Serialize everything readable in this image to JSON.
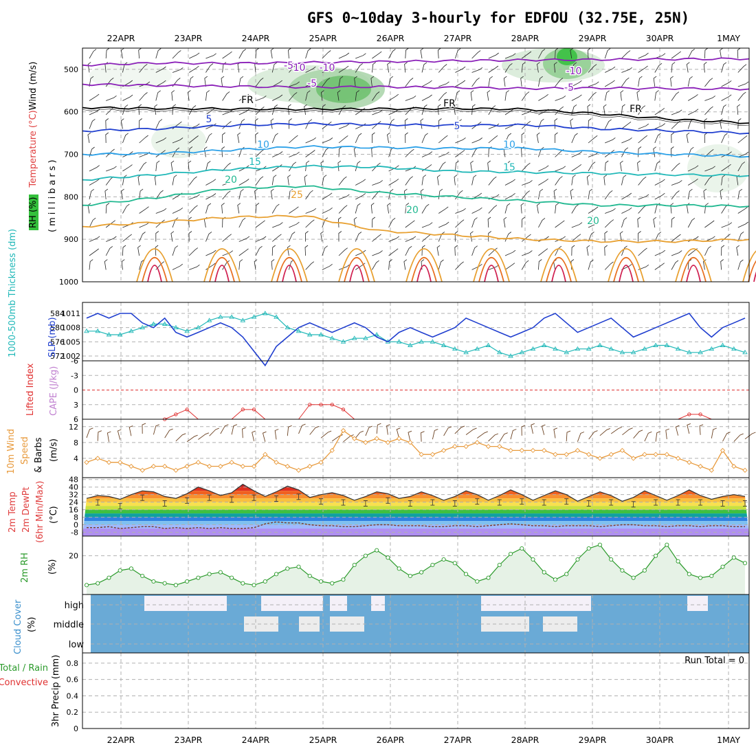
{
  "title": "GFS 0~10day 3-hourly for EDFOU (32.75E, 25N)",
  "dates": [
    "22APR",
    "23APR",
    "24APR",
    "25APR",
    "26APR",
    "27APR",
    "28APR",
    "29APR",
    "30APR",
    "1MAY"
  ],
  "colors": {
    "temp_cold": "#8a1fb8",
    "temp_freeze": "#000000",
    "temp_5": "#1f3ecf",
    "temp_10": "#2aa0e8",
    "temp_15": "#20b8b8",
    "temp_20": "#20b890",
    "temp_25": "#e8a030",
    "temp_30": "#e87020",
    "temp_35": "#d02050",
    "rh_green": "#34c03c",
    "slp": "#1f3ecf",
    "thickness": "#20b8b8",
    "lifted": "#e03030",
    "wind10": "#e89a3c",
    "rh2m": "#2a9a2a",
    "cloud": "#6aaad6",
    "cloud_clear": "#f4f0f8"
  },
  "chart_data": [
    {
      "id": "upper_air",
      "type": "contour",
      "y_axis_label_parts": [
        "RH (%)",
        "Temperature (°C)",
        "Wind (m/s)"
      ],
      "y_axis_title": "(millibars)",
      "y_ticks": [
        "500",
        "600",
        "700",
        "800",
        "900",
        "1000"
      ],
      "ylim": [
        450,
        1000
      ],
      "contours": [
        {
          "label": "-10",
          "value": -10,
          "levels": [
            490,
            485,
            486,
            484,
            482,
            480,
            478,
            477,
            476,
            475
          ]
        },
        {
          "label": "-5",
          "value": -5,
          "levels": [
            535,
            538,
            540,
            542,
            541,
            543,
            545,
            544,
            545,
            546
          ]
        },
        {
          "label": "FR",
          "value": 0,
          "levels": [
            590,
            592,
            593,
            594,
            593,
            592,
            594,
            605,
            618,
            626
          ]
        },
        {
          "label": "5",
          "value": 5,
          "levels": [
            645,
            640,
            632,
            628,
            630,
            632,
            631,
            640,
            645,
            650
          ]
        },
        {
          "label": "10",
          "value": 10,
          "levels": [
            700,
            698,
            690,
            682,
            684,
            686,
            686,
            695,
            700,
            705
          ]
        },
        {
          "label": "15",
          "value": 15,
          "levels": [
            760,
            748,
            735,
            728,
            730,
            740,
            742,
            745,
            748,
            750
          ]
        },
        {
          "label": "20",
          "value": 20,
          "levels": [
            820,
            802,
            780,
            775,
            790,
            800,
            810,
            820,
            820,
            822
          ]
        },
        {
          "label": "25",
          "value": 25,
          "levels": [
            870,
            860,
            848,
            845,
            880,
            890,
            900,
            905,
            905,
            900
          ]
        }
      ],
      "contour_labels": [
        "-10",
        "-5",
        "FR",
        "5",
        "10",
        "15",
        "20",
        "25",
        "-10",
        "-5",
        "FR",
        "5",
        "10",
        "15",
        "20",
        "FR",
        "-10",
        "-5",
        "20"
      ]
    },
    {
      "id": "slp_thickness",
      "type": "line",
      "y_axis_label": "1000-500mb Thickness (dm)",
      "y2_axis_label": "SLP (mb)",
      "left_ticks": [
        "584",
        "580",
        "576",
        "572"
      ],
      "right_ticks": [
        "1011",
        "1008",
        "1005",
        "1002"
      ],
      "series": [
        {
          "id": "slp",
          "values": [
            1010,
            1011,
            1010,
            1011,
            1011,
            1009,
            1008,
            1010,
            1007,
            1006,
            1007,
            1008,
            1009,
            1008,
            1006,
            1003,
            1000,
            1004,
            1006,
            1008,
            1009,
            1008,
            1007,
            1008,
            1009,
            1008,
            1006,
            1005,
            1007,
            1008,
            1007,
            1006,
            1007,
            1008,
            1010,
            1009,
            1008,
            1007,
            1006,
            1007,
            1008,
            1010,
            1011,
            1009,
            1007,
            1008,
            1009,
            1010,
            1008,
            1006,
            1007,
            1008,
            1009,
            1010,
            1011,
            1008,
            1006,
            1008,
            1009,
            1010
          ]
        },
        {
          "id": "thickness",
          "values": [
            579,
            579,
            578,
            578,
            579,
            580,
            581,
            581,
            580,
            579,
            580,
            582,
            583,
            583,
            582,
            583,
            584,
            583,
            580,
            579,
            578,
            578,
            577,
            576,
            577,
            577,
            578,
            576,
            576,
            575,
            576,
            576,
            575,
            574,
            573,
            574,
            575,
            573,
            572,
            573,
            574,
            575,
            574,
            573,
            574,
            574,
            575,
            574,
            573,
            573,
            574,
            575,
            575,
            574,
            573,
            573,
            574,
            575,
            574,
            573
          ]
        }
      ]
    },
    {
      "id": "cape_li",
      "type": "line",
      "y_axis_label_parts": [
        "Lifted Index",
        "CAPE (J/kg)"
      ],
      "y_ticks": [
        "-6",
        "-3",
        "0",
        "3",
        "6"
      ],
      "series": [
        {
          "id": "lifted_index",
          "values": [
            8,
            8,
            8,
            8,
            8,
            8,
            8,
            6,
            5,
            4,
            8,
            8,
            8,
            8,
            4,
            4,
            8,
            8,
            8,
            8,
            3,
            3,
            3,
            4,
            8,
            8,
            8,
            8,
            8,
            8,
            8,
            8,
            8,
            8,
            8,
            8,
            8,
            8,
            8,
            8,
            8,
            8,
            8,
            8,
            8,
            8,
            8,
            8,
            8,
            8,
            8,
            8,
            8,
            8,
            5,
            5,
            8,
            8,
            8,
            8
          ]
        }
      ]
    },
    {
      "id": "wind10m",
      "type": "line",
      "y_axis_label_parts": [
        "10m Wind",
        "Speed",
        "& Barbs"
      ],
      "y_axis_unit": "(m/s)",
      "y_ticks": [
        "12",
        "8",
        "4"
      ],
      "series": [
        {
          "id": "speed",
          "values": [
            3,
            4,
            3,
            3,
            2,
            1,
            2,
            2,
            1,
            2,
            3,
            2,
            2,
            3,
            2,
            2,
            5,
            3,
            2,
            1,
            2,
            3,
            6,
            11,
            9,
            8,
            9,
            8,
            9,
            8,
            5,
            5,
            6,
            7,
            7,
            8,
            7,
            7,
            6,
            6,
            6,
            6,
            5,
            5,
            6,
            5,
            4,
            5,
            6,
            4,
            5,
            5,
            5,
            4,
            3,
            2,
            1,
            6,
            2,
            1
          ]
        }
      ]
    },
    {
      "id": "temp2m",
      "type": "area",
      "y_axis_label_parts": [
        "2m Temp",
        "2m DewPt",
        "(6hr Min/Max)"
      ],
      "y_axis_unit": "(°C)",
      "y_ticks": [
        "48",
        "40",
        "32",
        "24",
        "16",
        "8",
        "0",
        "-8"
      ],
      "series": [
        {
          "id": "temp",
          "values": [
            28,
            31,
            30,
            27,
            32,
            36,
            35,
            30,
            28,
            33,
            40,
            36,
            31,
            34,
            43,
            36,
            30,
            35,
            41,
            37,
            29,
            32,
            34,
            31,
            26,
            30,
            35,
            33,
            28,
            30,
            35,
            31,
            26,
            30,
            36,
            32,
            26,
            31,
            37,
            32,
            26,
            31,
            36,
            32,
            25,
            30,
            35,
            31,
            25,
            29,
            36,
            31,
            26,
            31,
            37,
            31,
            27,
            30,
            32,
            30
          ]
        },
        {
          "id": "dewpt",
          "values": [
            -3,
            -3,
            -2,
            -4,
            -3,
            -2,
            -2,
            -4,
            -3,
            -4,
            -3,
            -4,
            -3,
            -4,
            -4,
            -3,
            1,
            3,
            2,
            2,
            0,
            -1,
            -1,
            -2,
            -2,
            -1,
            0,
            0,
            -1,
            -1,
            -1,
            -2,
            -2,
            -1,
            -1,
            -2,
            -1,
            0,
            1,
            0,
            -1,
            -1,
            -2,
            -1,
            -1,
            -1,
            -2,
            -1,
            0,
            0,
            -1,
            -1,
            -2,
            -1,
            -1,
            -2,
            -1,
            -1,
            -2,
            -2
          ]
        }
      ]
    },
    {
      "id": "rh2m",
      "type": "area",
      "y_axis_label": "2m RH",
      "y_axis_unit": "(%)",
      "y_ticks": [
        "20"
      ],
      "series": [
        {
          "id": "rh",
          "values": [
            4,
            5,
            8,
            12,
            13,
            9,
            6,
            5,
            4,
            6,
            8,
            10,
            11,
            8,
            5,
            4,
            6,
            10,
            13,
            14,
            9,
            6,
            5,
            7,
            15,
            20,
            23,
            19,
            13,
            9,
            11,
            15,
            18,
            16,
            10,
            6,
            8,
            15,
            21,
            24,
            18,
            11,
            7,
            10,
            18,
            24,
            26,
            18,
            12,
            8,
            12,
            20,
            26,
            17,
            10,
            8,
            9,
            14,
            19,
            16
          ]
        }
      ]
    },
    {
      "id": "cloud",
      "type": "heatmap",
      "y_axis_label": "Cloud Cover",
      "y_axis_unit": "(%)",
      "row_labels": [
        "high",
        "middle",
        "low"
      ]
    },
    {
      "id": "precip",
      "type": "line",
      "y_axis_label_parts": [
        "Total / Rain",
        "Convective",
        "3hr Precip (mm)"
      ],
      "y_ticks": [
        "0.8",
        "0.6",
        "0.4",
        "0.2",
        "0"
      ],
      "annotation": "Run Total = 0",
      "ylim": [
        0,
        0.9
      ]
    }
  ]
}
